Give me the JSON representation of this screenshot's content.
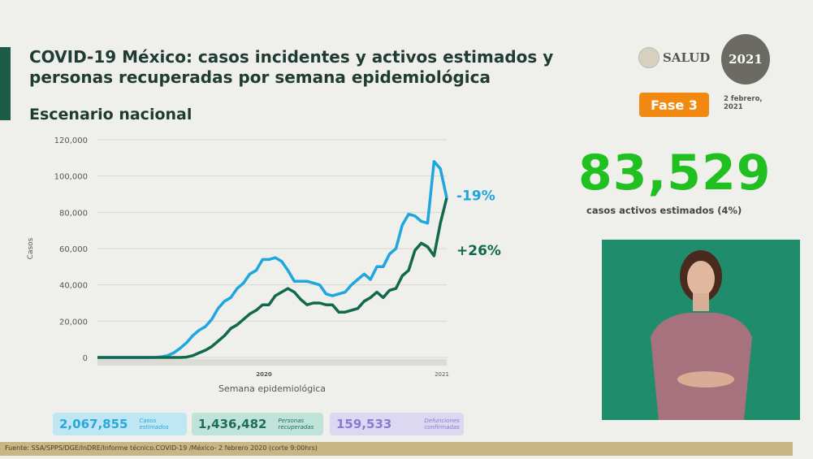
{
  "header": {
    "title": "COVID-19 México: casos incidentes y activos estimados y personas recuperadas por semana epidemiológica",
    "subtitle": "Escenario nacional"
  },
  "logos": {
    "salud": "SALUD",
    "year_logo": "2021"
  },
  "phase": {
    "label": "Fase 3",
    "color": "#f28a12"
  },
  "date": "2 febrero, 2021",
  "headline": {
    "value": "83,529",
    "label": "casos activos estimados (4%)",
    "color": "#20c020"
  },
  "stats": [
    {
      "value": "2,067,855",
      "label": "Casos estimados",
      "color": "#2aa8dc"
    },
    {
      "value": "1,436,482",
      "label": "Personas recuperadas",
      "color": "#1e6e55"
    },
    {
      "value": "159,533",
      "label": "Defunciones confirmadas",
      "color": "#8a7bd0"
    }
  ],
  "source": "Fuente: SSA/SPPS/DGE/InDRE/Informe técnico.COVID-19 /México- 2 febrero 2020 (corte 9:00hrs)",
  "chart_data": {
    "type": "line",
    "xlabel": "Semana epidemiológica",
    "ylabel": "Casos",
    "ylim": [
      0,
      120000
    ],
    "yticks": [
      "0",
      "20,000",
      "40,000",
      "60,000",
      "80,000",
      "100,000",
      "120,000"
    ],
    "year_labels": [
      "2020",
      "2021"
    ],
    "grid": true,
    "series": [
      {
        "color": "#1fa6df",
        "end_label": "-19%",
        "values": [
          0,
          0,
          0,
          0,
          0,
          0,
          0,
          0,
          0,
          0,
          300,
          1000,
          2500,
          5000,
          8000,
          12000,
          15000,
          17000,
          21000,
          27000,
          31000,
          33000,
          38000,
          41000,
          46000,
          48000,
          54000,
          54000,
          55000,
          53000,
          48000,
          42000,
          42000,
          42000,
          41000,
          40000,
          35000,
          34000,
          35000,
          36000,
          40000,
          43000,
          46000,
          43000,
          50000,
          50000,
          57000,
          60000,
          73000,
          79000,
          78000,
          75000,
          74000,
          108000,
          104000,
          88000
        ]
      },
      {
        "color": "#10694f",
        "end_label": "+26%",
        "values": [
          0,
          0,
          0,
          0,
          0,
          0,
          0,
          0,
          0,
          0,
          0,
          0,
          0,
          0,
          200,
          1000,
          2500,
          4000,
          6000,
          9000,
          12000,
          16000,
          18000,
          21000,
          24000,
          26000,
          29000,
          29000,
          34000,
          36000,
          38000,
          36000,
          32000,
          29000,
          30000,
          30000,
          29000,
          29000,
          25000,
          25000,
          26000,
          27000,
          31000,
          33000,
          36000,
          33000,
          37000,
          38000,
          45000,
          48000,
          59000,
          63000,
          61000,
          56000,
          74000,
          88000
        ]
      }
    ]
  }
}
